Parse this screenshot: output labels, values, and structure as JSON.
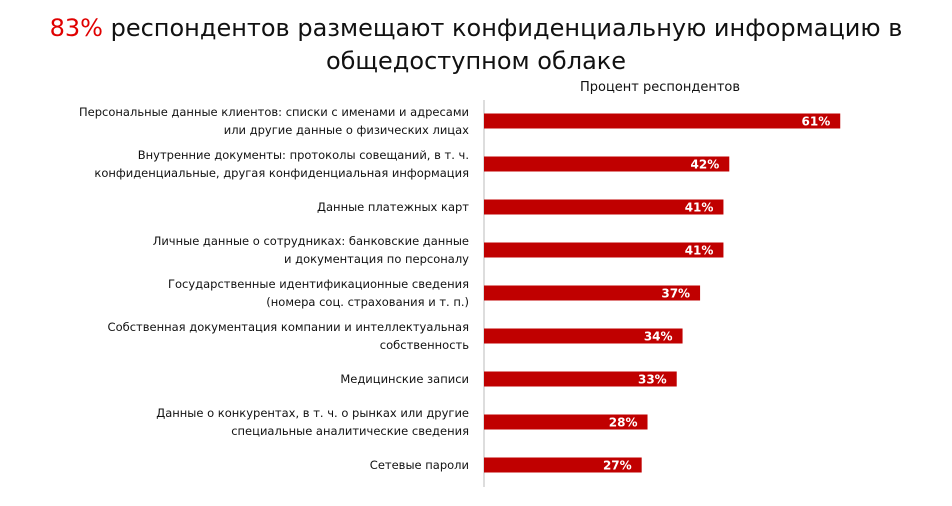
{
  "chart_data": {
    "type": "barh",
    "title": "83% респондентов размещают конфиденциальную информацию в общедоступном облаке",
    "title_highlight": "83%",
    "xlabel": "Процент респондентов",
    "categories": [
      "Персональные данные клиентов: списки с именами и адресами\nили другие данные о физических лицах",
      "Внутренние документы: протоколы совещаний, в т. ч.\nконфиденциальные, другая конфиденциальная информация",
      "Данные платежных карт",
      "Личные данные о сотрудниках: банковские данные\nи документация по персоналу",
      "Государственные идентификационные сведения\n(номера соц. страхования и т. п.)",
      "Собственная документация компании и интеллектуальная\nсобственность",
      "Медицинские записи",
      "Данные о конкурентах, в т. ч. о рынках или другие\nспециальные аналитические сведения",
      "Сетевые пароли"
    ],
    "values": [
      61,
      42,
      41,
      41,
      37,
      34,
      33,
      28,
      27
    ],
    "value_labels": [
      "61%",
      "42%",
      "41%",
      "41%",
      "37%",
      "34%",
      "33%",
      "28%",
      "27%"
    ],
    "color": "#c00000",
    "xlim": [
      0,
      70
    ]
  }
}
